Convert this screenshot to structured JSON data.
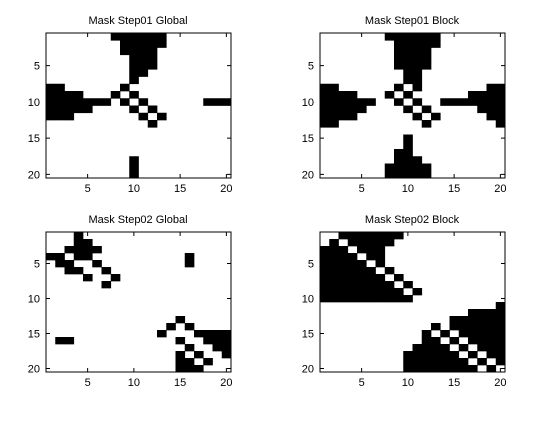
{
  "chart_data": [
    {
      "type": "heatmap",
      "title": "Mask Step01 Global",
      "xlim": [
        0.5,
        20.5
      ],
      "ylim": [
        0.5,
        20.5
      ],
      "y_reversed": true,
      "xticks": [
        5,
        10,
        15,
        20
      ],
      "yticks": [
        5,
        10,
        15,
        20
      ],
      "xticklabels": [
        "5",
        "10",
        "15",
        "20"
      ],
      "yticklabels": [
        "5",
        "10",
        "15",
        "20"
      ],
      "grid": false,
      "colors": {
        "1": "#000000",
        "0": "#ffffff"
      },
      "black_cells": [
        [
          1,
          8
        ],
        [
          1,
          9
        ],
        [
          1,
          10
        ],
        [
          1,
          11
        ],
        [
          1,
          12
        ],
        [
          1,
          13
        ],
        [
          2,
          9
        ],
        [
          2,
          10
        ],
        [
          2,
          11
        ],
        [
          2,
          12
        ],
        [
          2,
          13
        ],
        [
          3,
          9
        ],
        [
          3,
          10
        ],
        [
          3,
          11
        ],
        [
          3,
          12
        ],
        [
          4,
          10
        ],
        [
          4,
          11
        ],
        [
          4,
          12
        ],
        [
          5,
          10
        ],
        [
          5,
          11
        ],
        [
          5,
          12
        ],
        [
          6,
          10
        ],
        [
          6,
          11
        ],
        [
          7,
          10
        ],
        [
          8,
          1
        ],
        [
          8,
          2
        ],
        [
          8,
          9
        ],
        [
          9,
          1
        ],
        [
          9,
          2
        ],
        [
          9,
          3
        ],
        [
          9,
          4
        ],
        [
          9,
          8
        ],
        [
          9,
          10
        ],
        [
          10,
          1
        ],
        [
          10,
          2
        ],
        [
          10,
          3
        ],
        [
          10,
          4
        ],
        [
          10,
          5
        ],
        [
          10,
          6
        ],
        [
          10,
          7
        ],
        [
          10,
          9
        ],
        [
          10,
          11
        ],
        [
          10,
          18
        ],
        [
          10,
          19
        ],
        [
          10,
          20
        ],
        [
          11,
          1
        ],
        [
          11,
          2
        ],
        [
          11,
          3
        ],
        [
          11,
          4
        ],
        [
          11,
          5
        ],
        [
          11,
          10
        ],
        [
          11,
          12
        ],
        [
          12,
          1
        ],
        [
          12,
          2
        ],
        [
          12,
          3
        ],
        [
          12,
          11
        ],
        [
          12,
          13
        ],
        [
          13,
          12
        ],
        [
          18,
          10
        ],
        [
          19,
          10
        ],
        [
          20,
          10
        ]
      ]
    },
    {
      "type": "heatmap",
      "title": "Mask Step01 Block",
      "xlim": [
        0.5,
        20.5
      ],
      "ylim": [
        0.5,
        20.5
      ],
      "y_reversed": true,
      "xticks": [
        5,
        10,
        15,
        20
      ],
      "yticks": [
        5,
        10,
        15,
        20
      ],
      "xticklabels": [
        "5",
        "10",
        "15",
        "20"
      ],
      "yticklabels": [
        "5",
        "10",
        "15",
        "20"
      ],
      "grid": false,
      "colors": {
        "1": "#000000",
        "0": "#ffffff"
      },
      "black_cells": [
        [
          1,
          8
        ],
        [
          1,
          9
        ],
        [
          1,
          10
        ],
        [
          1,
          11
        ],
        [
          1,
          12
        ],
        [
          1,
          13
        ],
        [
          2,
          9
        ],
        [
          2,
          10
        ],
        [
          2,
          11
        ],
        [
          2,
          12
        ],
        [
          2,
          13
        ],
        [
          3,
          9
        ],
        [
          3,
          10
        ],
        [
          3,
          11
        ],
        [
          3,
          12
        ],
        [
          4,
          9
        ],
        [
          4,
          10
        ],
        [
          4,
          11
        ],
        [
          4,
          12
        ],
        [
          5,
          9
        ],
        [
          5,
          10
        ],
        [
          5,
          11
        ],
        [
          5,
          12
        ],
        [
          6,
          10
        ],
        [
          6,
          11
        ],
        [
          7,
          10
        ],
        [
          7,
          11
        ],
        [
          8,
          1
        ],
        [
          8,
          2
        ],
        [
          8,
          9
        ],
        [
          8,
          11
        ],
        [
          8,
          19
        ],
        [
          8,
          20
        ],
        [
          9,
          1
        ],
        [
          9,
          2
        ],
        [
          9,
          3
        ],
        [
          9,
          4
        ],
        [
          9,
          8
        ],
        [
          9,
          10
        ],
        [
          9,
          17
        ],
        [
          9,
          18
        ],
        [
          9,
          19
        ],
        [
          9,
          20
        ],
        [
          10,
          1
        ],
        [
          10,
          2
        ],
        [
          10,
          3
        ],
        [
          10,
          4
        ],
        [
          10,
          5
        ],
        [
          10,
          6
        ],
        [
          10,
          9
        ],
        [
          10,
          11
        ],
        [
          10,
          14
        ],
        [
          10,
          15
        ],
        [
          10,
          16
        ],
        [
          10,
          17
        ],
        [
          10,
          18
        ],
        [
          10,
          19
        ],
        [
          10,
          20
        ],
        [
          11,
          1
        ],
        [
          11,
          2
        ],
        [
          11,
          3
        ],
        [
          11,
          4
        ],
        [
          11,
          5
        ],
        [
          11,
          10
        ],
        [
          11,
          12
        ],
        [
          11,
          18
        ],
        [
          11,
          19
        ],
        [
          11,
          20
        ],
        [
          12,
          1
        ],
        [
          12,
          2
        ],
        [
          12,
          3
        ],
        [
          12,
          4
        ],
        [
          12,
          11
        ],
        [
          12,
          13
        ],
        [
          12,
          19
        ],
        [
          12,
          20
        ],
        [
          13,
          1
        ],
        [
          13,
          2
        ],
        [
          13,
          12
        ],
        [
          13,
          20
        ],
        [
          15,
          10
        ],
        [
          16,
          10
        ],
        [
          17,
          9
        ],
        [
          17,
          10
        ],
        [
          18,
          9
        ],
        [
          18,
          10
        ],
        [
          18,
          11
        ],
        [
          19,
          8
        ],
        [
          19,
          9
        ],
        [
          19,
          10
        ],
        [
          19,
          11
        ],
        [
          19,
          12
        ],
        [
          20,
          8
        ],
        [
          20,
          9
        ],
        [
          20,
          10
        ],
        [
          20,
          11
        ],
        [
          20,
          12
        ]
      ]
    },
    {
      "type": "heatmap",
      "title": "Mask Step02 Global",
      "xlim": [
        0.5,
        20.5
      ],
      "ylim": [
        0.5,
        20.5
      ],
      "y_reversed": true,
      "xticks": [
        5,
        10,
        15,
        20
      ],
      "yticks": [
        5,
        10,
        15,
        20
      ],
      "xticklabels": [
        "5",
        "10",
        "15",
        "20"
      ],
      "yticklabels": [
        "5",
        "10",
        "15",
        "20"
      ],
      "grid": false,
      "colors": {
        "1": "#000000",
        "0": "#ffffff"
      },
      "black_cells": [
        [
          1,
          4
        ],
        [
          2,
          4
        ],
        [
          2,
          5
        ],
        [
          3,
          3
        ],
        [
          3,
          4
        ],
        [
          3,
          5
        ],
        [
          3,
          6
        ],
        [
          4,
          1
        ],
        [
          4,
          2
        ],
        [
          4,
          4
        ],
        [
          4,
          5
        ],
        [
          4,
          16
        ],
        [
          5,
          2
        ],
        [
          5,
          3
        ],
        [
          5,
          6
        ],
        [
          5,
          16
        ],
        [
          6,
          3
        ],
        [
          6,
          4
        ],
        [
          6,
          7
        ],
        [
          7,
          5
        ],
        [
          7,
          8
        ],
        [
          8,
          7
        ],
        [
          13,
          15
        ],
        [
          14,
          14
        ],
        [
          14,
          16
        ],
        [
          15,
          13
        ],
        [
          15,
          17
        ],
        [
          15,
          18
        ],
        [
          15,
          19
        ],
        [
          15,
          20
        ],
        [
          16,
          2
        ],
        [
          16,
          3
        ],
        [
          16,
          15
        ],
        [
          16,
          18
        ],
        [
          16,
          19
        ],
        [
          16,
          20
        ],
        [
          17,
          16
        ],
        [
          17,
          19
        ],
        [
          17,
          20
        ],
        [
          18,
          15
        ],
        [
          18,
          17
        ],
        [
          18,
          20
        ],
        [
          19,
          15
        ],
        [
          19,
          16
        ],
        [
          19,
          18
        ],
        [
          20,
          15
        ],
        [
          20,
          16
        ],
        [
          20,
          17
        ]
      ]
    },
    {
      "type": "heatmap",
      "title": "Mask Step02 Block",
      "xlim": [
        0.5,
        20.5
      ],
      "ylim": [
        0.5,
        20.5
      ],
      "y_reversed": true,
      "xticks": [
        5,
        10,
        15,
        20
      ],
      "yticks": [
        5,
        10,
        15,
        20
      ],
      "xticklabels": [
        "5",
        "10",
        "15",
        "20"
      ],
      "yticklabels": [
        "5",
        "10",
        "15",
        "20"
      ],
      "grid": false,
      "colors": {
        "1": "#000000",
        "0": "#ffffff"
      },
      "black_cells": [
        [
          1,
          3
        ],
        [
          1,
          4
        ],
        [
          1,
          5
        ],
        [
          1,
          6
        ],
        [
          1,
          7
        ],
        [
          1,
          8
        ],
        [
          1,
          9
        ],
        [
          2,
          2
        ],
        [
          2,
          4
        ],
        [
          2,
          5
        ],
        [
          2,
          6
        ],
        [
          2,
          7
        ],
        [
          2,
          8
        ],
        [
          3,
          1
        ],
        [
          3,
          2
        ],
        [
          3,
          3
        ],
        [
          3,
          5
        ],
        [
          3,
          6
        ],
        [
          3,
          7
        ],
        [
          4,
          1
        ],
        [
          4,
          2
        ],
        [
          4,
          3
        ],
        [
          4,
          4
        ],
        [
          4,
          6
        ],
        [
          4,
          7
        ],
        [
          5,
          1
        ],
        [
          5,
          2
        ],
        [
          5,
          3
        ],
        [
          5,
          4
        ],
        [
          5,
          5
        ],
        [
          5,
          7
        ],
        [
          6,
          1
        ],
        [
          6,
          2
        ],
        [
          6,
          3
        ],
        [
          6,
          4
        ],
        [
          6,
          5
        ],
        [
          6,
          6
        ],
        [
          6,
          8
        ],
        [
          7,
          1
        ],
        [
          7,
          2
        ],
        [
          7,
          3
        ],
        [
          7,
          4
        ],
        [
          7,
          5
        ],
        [
          7,
          6
        ],
        [
          7,
          7
        ],
        [
          7,
          9
        ],
        [
          8,
          1
        ],
        [
          8,
          2
        ],
        [
          8,
          3
        ],
        [
          8,
          4
        ],
        [
          8,
          5
        ],
        [
          8,
          6
        ],
        [
          8,
          7
        ],
        [
          8,
          8
        ],
        [
          8,
          10
        ],
        [
          9,
          1
        ],
        [
          9,
          2
        ],
        [
          9,
          3
        ],
        [
          9,
          4
        ],
        [
          9,
          5
        ],
        [
          9,
          6
        ],
        [
          9,
          7
        ],
        [
          9,
          8
        ],
        [
          9,
          9
        ],
        [
          9,
          11
        ],
        [
          10,
          1
        ],
        [
          10,
          2
        ],
        [
          10,
          3
        ],
        [
          10,
          4
        ],
        [
          10,
          5
        ],
        [
          10,
          6
        ],
        [
          10,
          7
        ],
        [
          10,
          8
        ],
        [
          10,
          9
        ],
        [
          10,
          10
        ],
        [
          11,
          20
        ],
        [
          12,
          17
        ],
        [
          12,
          18
        ],
        [
          12,
          19
        ],
        [
          12,
          20
        ],
        [
          13,
          15
        ],
        [
          13,
          16
        ],
        [
          13,
          17
        ],
        [
          13,
          18
        ],
        [
          13,
          19
        ],
        [
          13,
          20
        ],
        [
          14,
          13
        ],
        [
          14,
          15
        ],
        [
          14,
          16
        ],
        [
          14,
          17
        ],
        [
          14,
          18
        ],
        [
          14,
          19
        ],
        [
          14,
          20
        ],
        [
          15,
          12
        ],
        [
          15,
          14
        ],
        [
          15,
          16
        ],
        [
          15,
          17
        ],
        [
          15,
          18
        ],
        [
          15,
          19
        ],
        [
          15,
          20
        ],
        [
          16,
          12
        ],
        [
          16,
          13
        ],
        [
          16,
          15
        ],
        [
          16,
          17
        ],
        [
          16,
          18
        ],
        [
          16,
          19
        ],
        [
          16,
          20
        ],
        [
          17,
          11
        ],
        [
          17,
          12
        ],
        [
          17,
          13
        ],
        [
          17,
          14
        ],
        [
          17,
          16
        ],
        [
          17,
          18
        ],
        [
          17,
          19
        ],
        [
          17,
          20
        ],
        [
          18,
          10
        ],
        [
          18,
          11
        ],
        [
          18,
          12
        ],
        [
          18,
          13
        ],
        [
          18,
          14
        ],
        [
          18,
          15
        ],
        [
          18,
          17
        ],
        [
          18,
          19
        ],
        [
          18,
          20
        ],
        [
          19,
          10
        ],
        [
          19,
          11
        ],
        [
          19,
          12
        ],
        [
          19,
          13
        ],
        [
          19,
          14
        ],
        [
          19,
          15
        ],
        [
          19,
          16
        ],
        [
          19,
          18
        ],
        [
          19,
          20
        ],
        [
          20,
          10
        ],
        [
          20,
          11
        ],
        [
          20,
          12
        ],
        [
          20,
          13
        ],
        [
          20,
          14
        ],
        [
          20,
          15
        ],
        [
          20,
          16
        ],
        [
          20,
          17
        ],
        [
          20,
          19
        ]
      ]
    }
  ]
}
